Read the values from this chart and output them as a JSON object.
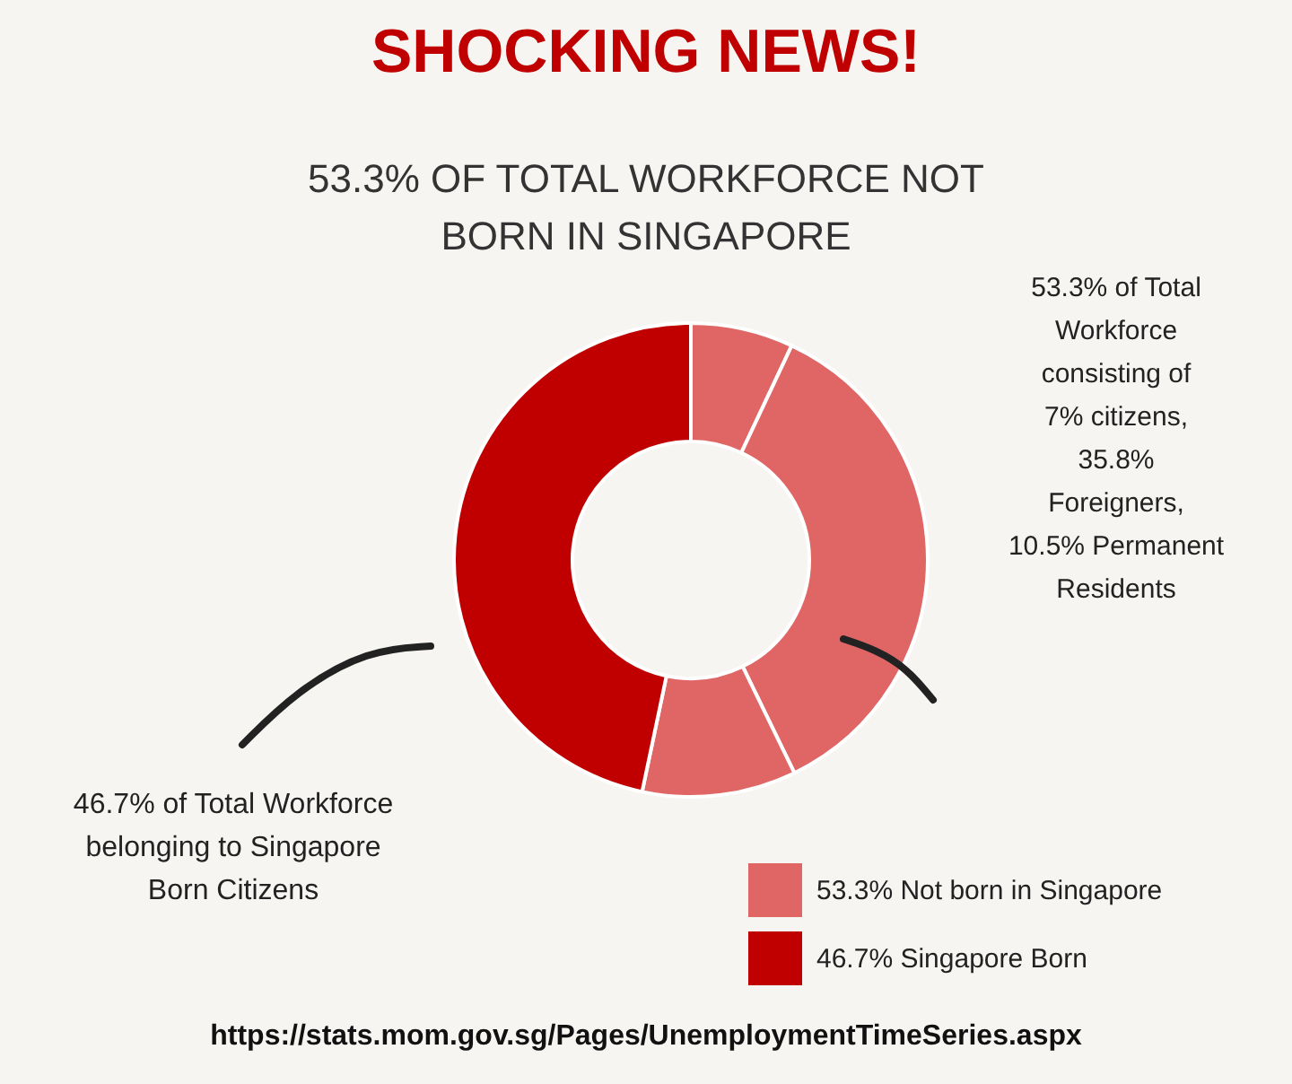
{
  "chart_data": {
    "type": "donut",
    "title": "SHOCKING NEWS!",
    "subtitle": "53.3% OF TOTAL WORKFORCE NOT BORN IN  SINGAPORE",
    "categories": [
      null,
      "53.3% Not born in Singapore",
      null,
      "46.7% Singapore Born"
    ],
    "values": [
      7,
      35.8,
      10.5,
      46.7
    ],
    "colors": [
      "#e06666",
      "#e06666",
      "#e06666",
      "#c00000"
    ],
    "legend": "bottom right",
    "annotations": [
      "53.3% of Total Workforce consisting of 7% citizens, 35.8% Foreigners, 10.5% Permanent Residents",
      "46.7% of Total Workforce belonging to Singapore Born Citizens",
      "https://stats.mom.gov.sg/Pages/UnemploymentTimeSeries.aspx"
    ]
  }
}
